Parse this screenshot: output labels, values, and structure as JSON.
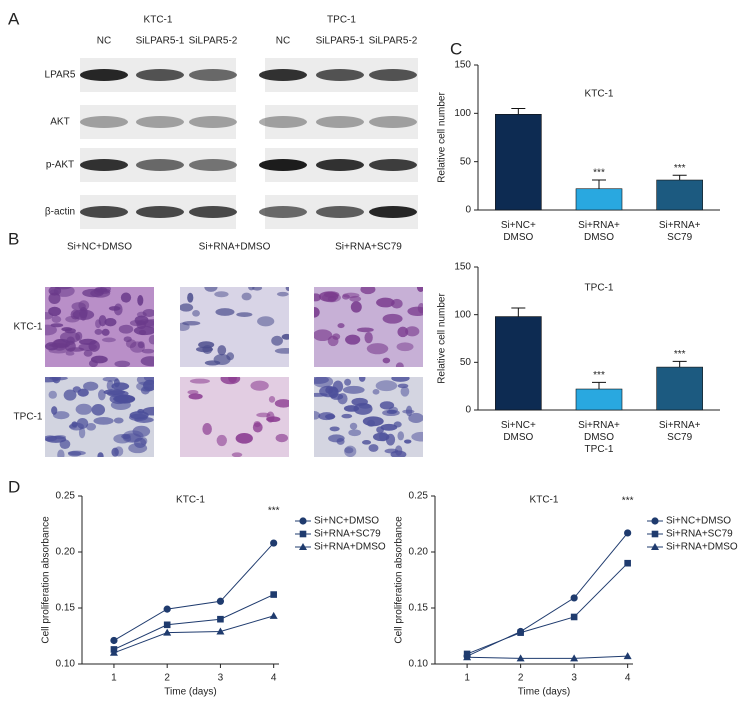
{
  "panels": {
    "a": "A",
    "b": "B",
    "c": "C",
    "d": "D"
  },
  "blots": {
    "groups": [
      {
        "title": "KTC-1",
        "lanes": [
          "NC",
          "SiLPAR5-1",
          "SiLPAR5-2"
        ]
      },
      {
        "title": "TPC-1",
        "lanes": [
          "NC",
          "SiLPAR5-1",
          "SiLPAR5-2"
        ]
      }
    ],
    "rows": [
      "LPAR5",
      "AKT",
      "p-AKT",
      "β-actin"
    ]
  },
  "micrographs": {
    "columns": [
      "Si+NC+DMSO",
      "Si+RNA+DMSO",
      "Si+RNA+SC79"
    ],
    "rows": [
      "KTC-1",
      "TPC-1"
    ]
  },
  "chart_data": [
    {
      "type": "bar",
      "title": "KTC-1",
      "ylabel": "Relative cell number",
      "categories": [
        "Si+NC+\nDMSO",
        "Si+RNA+\nDMSO",
        "Si+RNA+\nSC79"
      ],
      "values": [
        99,
        22,
        31
      ],
      "errors": [
        6,
        9,
        5
      ],
      "annotations": [
        null,
        "***",
        "***"
      ],
      "colors": [
        "#0d2b52",
        "#29a8e0",
        "#1c5a80"
      ],
      "ylim": [
        0,
        150
      ],
      "yticks": [
        0,
        50,
        100,
        150
      ]
    },
    {
      "type": "bar",
      "title": "TPC-1",
      "ylabel": "Relative cell number",
      "categories": [
        "Si+NC+\nDMSO",
        "Si+RNA+\nDMSO\nTPC-1",
        "Si+RNA+\nSC79"
      ],
      "values": [
        98,
        22,
        45
      ],
      "errors": [
        9,
        7,
        6
      ],
      "annotations": [
        null,
        "***",
        "***"
      ],
      "colors": [
        "#0d2b52",
        "#29a8e0",
        "#1c5a80"
      ],
      "ylim": [
        0,
        150
      ],
      "yticks": [
        0,
        50,
        100,
        150
      ]
    },
    {
      "type": "line",
      "title": "KTC-1",
      "xlabel": "Time (days)",
      "ylabel": "Cell proliferation absorbance",
      "x": [
        1,
        2,
        3,
        4
      ],
      "xlim": [
        0.4,
        4.1
      ],
      "xticks": [
        1,
        2,
        3,
        4
      ],
      "ylim": [
        0.1,
        0.25
      ],
      "yticks": [
        {
          "value": 0.1,
          "label": "0.10"
        },
        0.15,
        {
          "value": 0.2,
          "label": "0.20"
        },
        0.25
      ],
      "series": [
        {
          "name": "Si+NC+DMSO",
          "color": "#1f3b6e",
          "marker": "circle",
          "values": [
            0.121,
            0.149,
            0.156,
            0.208
          ]
        },
        {
          "name": "Si+RNA+SC79",
          "color": "#1f3b6e",
          "marker": "square",
          "values": [
            0.113,
            0.135,
            0.14,
            0.162
          ]
        },
        {
          "name": "Si+RNA+DMSO",
          "color": "#1f3b6e",
          "marker": "triangle",
          "values": [
            0.11,
            0.128,
            0.129,
            0.143
          ]
        }
      ],
      "annotations": [
        {
          "x": 4,
          "text": "***"
        }
      ]
    },
    {
      "type": "line",
      "title": "KTC-1",
      "xlabel": "Time (days)",
      "ylabel": "Cell proliferation absorbance",
      "x": [
        1,
        2,
        3,
        4
      ],
      "xlim": [
        0.4,
        4.1
      ],
      "xticks": [
        1,
        2,
        3,
        4
      ],
      "ylim": [
        0.1,
        0.25
      ],
      "yticks": [
        {
          "value": 0.1,
          "label": "0.10"
        },
        0.15,
        {
          "value": 0.2,
          "label": "0.20"
        },
        0.25
      ],
      "series": [
        {
          "name": "Si+NC+DMSO",
          "color": "#1f3b6e",
          "marker": "circle",
          "values": [
            0.107,
            0.129,
            0.159,
            0.217
          ]
        },
        {
          "name": "Si+RNA+SC79",
          "color": "#1f3b6e",
          "marker": "square",
          "values": [
            0.109,
            0.128,
            0.142,
            0.19
          ]
        },
        {
          "name": "Si+RNA+DMSO",
          "color": "#1f3b6e",
          "marker": "triangle",
          "values": [
            0.106,
            0.105,
            0.105,
            0.107
          ]
        }
      ],
      "annotations": [
        {
          "x": 4,
          "text": "***"
        }
      ]
    }
  ]
}
